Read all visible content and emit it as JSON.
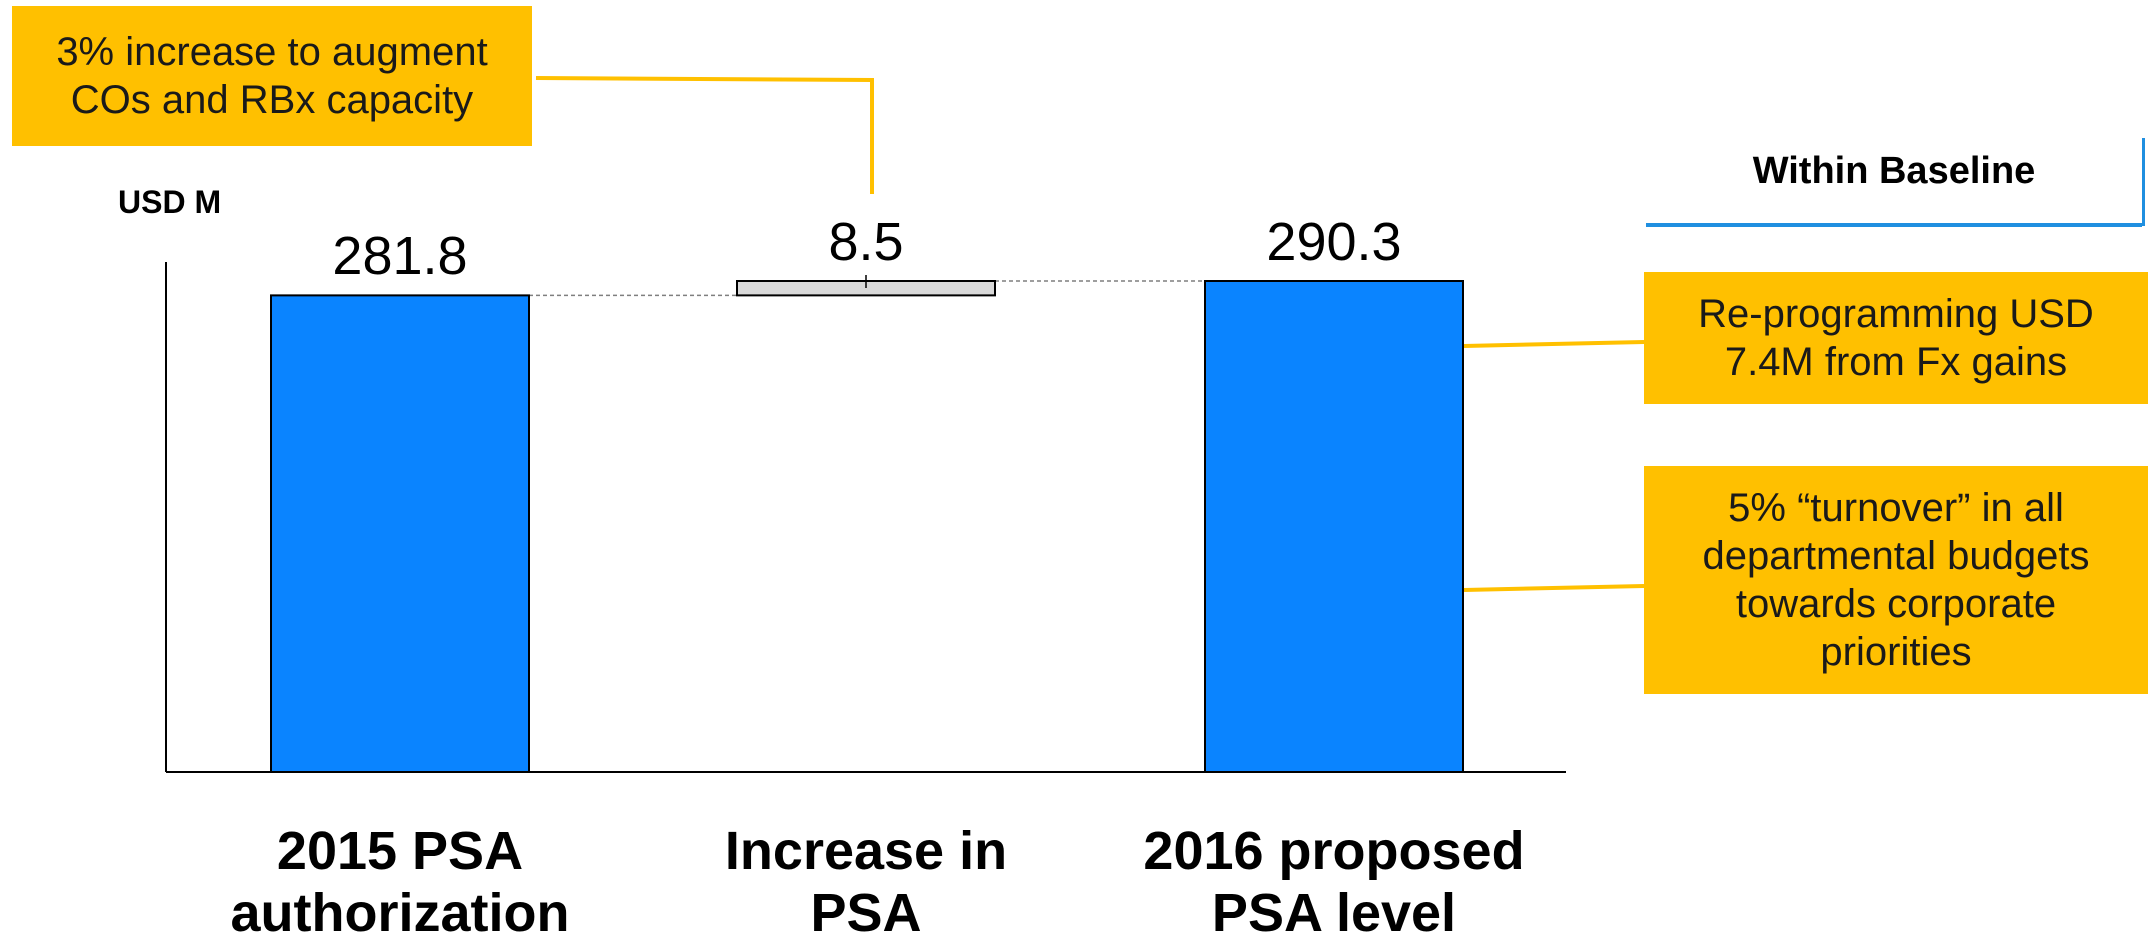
{
  "chart_data": {
    "type": "bar",
    "subtype": "waterfall",
    "ylabel": "USD M",
    "categories": [
      "2015 PSA authorization",
      "Increase in PSA",
      "2016 proposed PSA level"
    ],
    "values": [
      281.8,
      8.5,
      290.3
    ],
    "data_labels": [
      "281.8",
      "8.5",
      "290.3"
    ],
    "bar_kinds": [
      "total",
      "delta",
      "total"
    ],
    "ylim": [
      0,
      290.3
    ],
    "grid": false,
    "colors": {
      "total": "#0A84FF",
      "delta": "#D9D9D9",
      "callout": "#FFC000",
      "baseline_rule": "#1F8FE0"
    }
  },
  "callouts": {
    "increase_note": "3% increase to augment COs and RBx capacity",
    "reprogramming_note": "Re-programming USD 7.4M from Fx gains",
    "turnover_note": "5% “turnover” in all departmental budgets towards corporate priorities"
  },
  "legend_header": "Within Baseline"
}
